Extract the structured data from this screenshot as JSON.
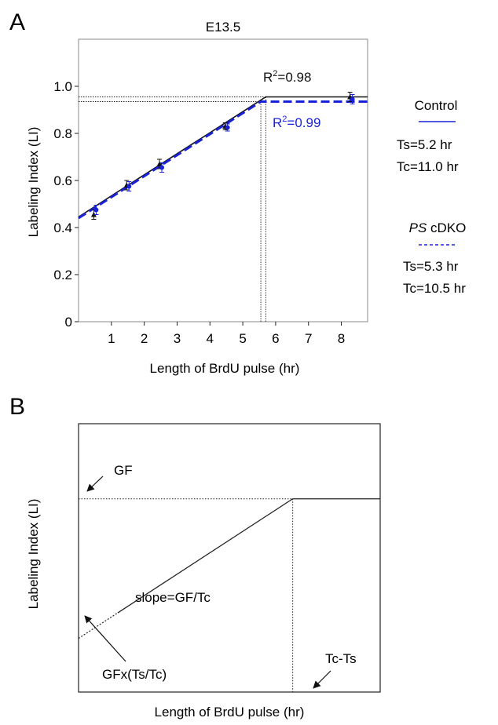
{
  "chart_data": [
    {
      "panel_label": "A",
      "type": "line",
      "title": "E13.5",
      "xlabel": "Length of BrdU pulse (hr)",
      "ylabel": "Labeling Index (LI)",
      "xlim": [
        0,
        8.8
      ],
      "ylim": [
        0,
        1.2
      ],
      "x_ticks": [
        1,
        2,
        3,
        4,
        5,
        6,
        7,
        8
      ],
      "y_ticks": [
        0,
        0.2,
        0.4,
        0.6,
        0.8,
        1.0
      ],
      "y_tick_labels": [
        "0",
        "0.2",
        "0.4",
        "0.6",
        "0.8",
        "1.0"
      ],
      "series": [
        {
          "color": "#111111",
          "dash": "solid",
          "marker": "triangle",
          "x": [
            0.5,
            1.5,
            2.5,
            4.5,
            8.3
          ],
          "y": [
            0.455,
            0.58,
            0.67,
            0.83,
            0.955
          ],
          "err": [
            0.02,
            0.02,
            0.02,
            0.015,
            0.02
          ],
          "fit": {
            "x0": 0,
            "y0": 0.445,
            "x_break": 5.7,
            "y_break": 0.955,
            "x_end": 8.8
          },
          "r2_label": "R",
          "r2_sup": "2",
          "r2_value": "=0.98",
          "legend_name": "Control",
          "params": [
            "Ts=5.2 hr",
            "Tc=11.0 hr"
          ]
        },
        {
          "color": "#1a22d6",
          "dash": "dashed",
          "marker": "circle",
          "x": [
            0.5,
            1.5,
            2.5,
            4.5,
            8.3
          ],
          "y": [
            0.475,
            0.575,
            0.655,
            0.825,
            0.945
          ],
          "err": [
            0.02,
            0.02,
            0.02,
            0.015,
            0.02
          ],
          "fit": {
            "x0": 0,
            "y0": 0.44,
            "x_break": 5.55,
            "y_break": 0.935,
            "x_end": 8.8
          },
          "r2_label": "R",
          "r2_sup": "2",
          "r2_value": "=0.99",
          "legend_name_italic": "PS",
          "legend_name_rest": " cDKO",
          "params": [
            "Ts=5.3 hr",
            "Tc=10.5 hr"
          ]
        }
      ],
      "grid": false
    },
    {
      "panel_label": "B",
      "type": "line",
      "xlabel": "Length of BrdU pulse (hr)",
      "ylabel": "Labeling Index (LI)",
      "annotations": {
        "gf": "GF",
        "slope": "slope=GF/Tc",
        "intercept": "GFx(Ts/Tc)",
        "tc_ts": "Tc-Ts"
      },
      "schematic": {
        "xlim": [
          0,
          1
        ],
        "ylim": [
          0,
          1
        ],
        "y0": 0.2,
        "x_break": 0.71,
        "y_break": 0.72,
        "dotted_until_x": 0.13
      }
    }
  ]
}
